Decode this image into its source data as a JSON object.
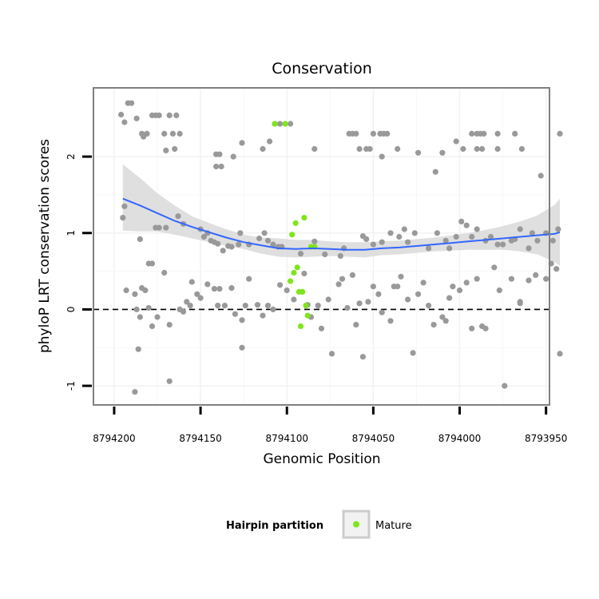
{
  "chart_data": {
    "type": "scatter",
    "title": "Conservation",
    "xlabel": "Genomic Position",
    "ylabel": "phyloP LRT conservation scores",
    "xlim": [
      8794212,
      8793948
    ],
    "ylim": [
      -1.25,
      2.9
    ],
    "x_reversed": true,
    "x_ticks": [
      8794200,
      8794150,
      8794100,
      8794050,
      8794000,
      8793950
    ],
    "x_tick_labels": [
      "8794200",
      "8794150",
      "8794100",
      "8794050",
      "8794000",
      "8793950"
    ],
    "y_ticks": [
      -1,
      0,
      1,
      2
    ],
    "y_tick_labels": [
      "-1",
      "0",
      "1",
      "2"
    ],
    "grid": true,
    "reference_line": {
      "y": 0,
      "style": "dashed"
    },
    "legend": {
      "title": "Hairpin partition",
      "placement": "bottom",
      "entries": [
        {
          "label": "Mature",
          "color": "#7fe51c"
        }
      ]
    },
    "colors": {
      "other": "#999999",
      "mature": "#7fe51c",
      "smooth": "#3366ff",
      "band": "#d9d9d9",
      "panel_border": "#808080"
    },
    "series": [
      {
        "group": "other",
        "points": [
          [
            8794196,
            2.55
          ],
          [
            8794194,
            2.45
          ],
          [
            8794192,
            2.7
          ],
          [
            8794190,
            2.7
          ],
          [
            8794187,
            2.5
          ],
          [
            8794184,
            2.3
          ],
          [
            8794183,
            2.26
          ],
          [
            8794181,
            2.3
          ],
          [
            8794178,
            2.54
          ],
          [
            8794176,
            2.54
          ],
          [
            8794174,
            2.54
          ],
          [
            8794171,
            2.3
          ],
          [
            8794168,
            2.54
          ],
          [
            8794166,
            2.3
          ],
          [
            8794164,
            2.54
          ],
          [
            8794162,
            2.3
          ],
          [
            8794170,
            2.08
          ],
          [
            8794165,
            2.1
          ],
          [
            8794141,
            2.03
          ],
          [
            8794139,
            2.03
          ],
          [
            8794141,
            1.87
          ],
          [
            8794138,
            1.87
          ],
          [
            8794131,
            2.0
          ],
          [
            8794126,
            2.18
          ],
          [
            8794114,
            2.1
          ],
          [
            8794110,
            2.2
          ],
          [
            8794107,
            2.43
          ],
          [
            8794104,
            2.43
          ],
          [
            8794098,
            2.43
          ],
          [
            8794084,
            2.1
          ],
          [
            8794064,
            2.3
          ],
          [
            8794062,
            2.3
          ],
          [
            8794060,
            2.3
          ],
          [
            8794058,
            2.1
          ],
          [
            8794054,
            2.1
          ],
          [
            8794052,
            2.1
          ],
          [
            8794050,
            2.3
          ],
          [
            8794046,
            2.3
          ],
          [
            8794044,
            2.3
          ],
          [
            8794042,
            2.3
          ],
          [
            8794045,
            2.0
          ],
          [
            8794036,
            2.1
          ],
          [
            8794024,
            2.05
          ],
          [
            8794014,
            1.8
          ],
          [
            8794010,
            2.05
          ],
          [
            8794002,
            2.2
          ],
          [
            8793998,
            2.1
          ],
          [
            8793993,
            2.3
          ],
          [
            8793990,
            2.3
          ],
          [
            8793988,
            2.3
          ],
          [
            8793986,
            2.3
          ],
          [
            8793990,
            2.1
          ],
          [
            8793987,
            2.1
          ],
          [
            8793978,
            2.1
          ],
          [
            8793968,
            2.3
          ],
          [
            8793964,
            2.1
          ],
          [
            8793978,
            2.3
          ],
          [
            8793953,
            1.75
          ],
          [
            8793942,
            2.3
          ],
          [
            8794194,
            1.35
          ],
          [
            8794195,
            1.2
          ],
          [
            8794176,
            1.07
          ],
          [
            8794174,
            1.07
          ],
          [
            8794170,
            1.07
          ],
          [
            8794163,
            1.22
          ],
          [
            8794160,
            1.12
          ],
          [
            8794150,
            1.05
          ],
          [
            8794148,
            0.95
          ],
          [
            8794146,
            1.0
          ],
          [
            8794144,
            0.9
          ],
          [
            8794142,
            0.88
          ],
          [
            8794140,
            0.86
          ],
          [
            8794137,
            0.77
          ],
          [
            8794134,
            0.83
          ],
          [
            8794132,
            0.82
          ],
          [
            8794127,
            1.0
          ],
          [
            8794116,
            0.93
          ],
          [
            8794113,
            1.0
          ],
          [
            8794111,
            0.9
          ],
          [
            8794108,
            0.85
          ],
          [
            8794105,
            0.82
          ],
          [
            8794103,
            0.82
          ],
          [
            8794092,
            0.73
          ],
          [
            8794084,
            0.89
          ],
          [
            8794078,
            0.72
          ],
          [
            8794056,
            0.96
          ],
          [
            8794054,
            0.92
          ],
          [
            8794050,
            0.85
          ],
          [
            8794045,
            0.88
          ],
          [
            8794040,
            1.0
          ],
          [
            8794035,
            0.95
          ],
          [
            8794032,
            1.05
          ],
          [
            8794030,
            0.88
          ],
          [
            8794026,
            1.0
          ],
          [
            8794018,
            0.8
          ],
          [
            8794013,
            1.0
          ],
          [
            8794008,
            0.9
          ],
          [
            8794006,
            0.8
          ],
          [
            8794002,
            0.95
          ],
          [
            8793999,
            1.15
          ],
          [
            8793996,
            1.1
          ],
          [
            8793993,
            0.95
          ],
          [
            8793990,
            1.05
          ],
          [
            8793985,
            0.9
          ],
          [
            8793982,
            0.95
          ],
          [
            8793978,
            0.85
          ],
          [
            8793975,
            0.85
          ],
          [
            8793970,
            0.9
          ],
          [
            8793968,
            0.92
          ],
          [
            8793965,
            1.05
          ],
          [
            8793960,
            0.8
          ],
          [
            8793958,
            1.0
          ],
          [
            8793955,
            0.9
          ],
          [
            8793950,
            1.0
          ],
          [
            8793946,
            0.9
          ],
          [
            8793943,
            1.05
          ],
          [
            8794128,
            0.85
          ],
          [
            8794122,
            0.85
          ],
          [
            8794069,
            0.7
          ],
          [
            8794067,
            0.8
          ],
          [
            8794185,
            0.92
          ],
          [
            8794180,
            0.6
          ],
          [
            8794178,
            0.6
          ],
          [
            8794171,
            0.48
          ],
          [
            8794193,
            0.25
          ],
          [
            8794188,
            0.2
          ],
          [
            8794187,
            0.0
          ],
          [
            8794185,
            -0.1
          ],
          [
            8794182,
            0.25
          ],
          [
            8794184,
            0.28
          ],
          [
            8794180,
            0.02
          ],
          [
            8794178,
            -0.22
          ],
          [
            8794186,
            -0.52
          ],
          [
            8794188,
            -1.08
          ],
          [
            8794175,
            -0.1
          ],
          [
            8794168,
            -0.2
          ],
          [
            8794160,
            -0.03
          ],
          [
            8794158,
            0.1
          ],
          [
            8794156,
            0.05
          ],
          [
            8794152,
            0.2
          ],
          [
            8794150,
            0.15
          ],
          [
            8794146,
            0.33
          ],
          [
            8794142,
            0.27
          ],
          [
            8794136,
            0.05
          ],
          [
            8794132,
            0.28
          ],
          [
            8794130,
            -0.06
          ],
          [
            8794126,
            -0.14
          ],
          [
            8794124,
            0.05
          ],
          [
            8794122,
            0.4
          ],
          [
            8794117,
            0.06
          ],
          [
            8794114,
            -0.08
          ],
          [
            8794111,
            0.05
          ],
          [
            8794108,
            0.0
          ],
          [
            8794104,
            0.32
          ],
          [
            8794100,
            0.25
          ],
          [
            8794096,
            0.13
          ],
          [
            8794090,
            0.47
          ],
          [
            8794088,
            0.06
          ],
          [
            8794086,
            -0.1
          ],
          [
            8794082,
            0.05
          ],
          [
            8794080,
            -0.25
          ],
          [
            8794076,
            0.13
          ],
          [
            8794074,
            -0.58
          ],
          [
            8794070,
            0.33
          ],
          [
            8794068,
            0.4
          ],
          [
            8794065,
            0.02
          ],
          [
            8794062,
            0.45
          ],
          [
            8794060,
            -0.2
          ],
          [
            8794058,
            0.08
          ],
          [
            8794056,
            -0.62
          ],
          [
            8794053,
            0.1
          ],
          [
            8794050,
            0.3
          ],
          [
            8794047,
            0.2
          ],
          [
            8794045,
            -0.04
          ],
          [
            8794040,
            -0.15
          ],
          [
            8794038,
            0.3
          ],
          [
            8794034,
            0.43
          ],
          [
            8794030,
            0.13
          ],
          [
            8794027,
            -0.57
          ],
          [
            8794024,
            0.2
          ],
          [
            8794021,
            0.35
          ],
          [
            8794018,
            0.05
          ],
          [
            8794015,
            -0.2
          ],
          [
            8794010,
            -0.1
          ],
          [
            8794008,
            -0.15
          ],
          [
            8794006,
            0.15
          ],
          [
            8794004,
            0.3
          ],
          [
            8794000,
            0.25
          ],
          [
            8793996,
            0.35
          ],
          [
            8793993,
            -0.25
          ],
          [
            8793990,
            0.4
          ],
          [
            8793987,
            -0.22
          ],
          [
            8793985,
            -0.25
          ],
          [
            8793980,
            0.55
          ],
          [
            8793977,
            0.25
          ],
          [
            8793974,
            -1.0
          ],
          [
            8793970,
            0.4
          ],
          [
            8793965,
            0.1
          ],
          [
            8793960,
            0.38
          ],
          [
            8793956,
            0.45
          ],
          [
            8793950,
            0.4
          ],
          [
            8793947,
            0.6
          ],
          [
            8793944,
            0.53
          ],
          [
            8793942,
            -0.58
          ],
          [
            8794162,
            0.0
          ],
          [
            8794155,
            0.36
          ],
          [
            8794168,
            -0.94
          ],
          [
            8794139,
            0.27
          ],
          [
            8794126,
            -0.5
          ],
          [
            8794036,
            0.3
          ],
          [
            8794140,
            0.05
          ],
          [
            8793965,
            0.08
          ]
        ]
      },
      {
        "group": "mature",
        "name": "Mature",
        "points": [
          [
            8794107,
            2.43
          ],
          [
            8794101,
            2.43
          ],
          [
            8794095,
            1.13
          ],
          [
            8794097,
            0.98
          ],
          [
            8794090,
            1.2
          ],
          [
            8794096,
            0.48
          ],
          [
            8794094,
            0.55
          ],
          [
            8794098,
            0.37
          ],
          [
            8794091,
            0.23
          ],
          [
            8794093,
            0.23
          ],
          [
            8794089,
            0.05
          ],
          [
            8794088,
            -0.08
          ],
          [
            8794092,
            -0.22
          ],
          [
            8794086,
            0.82
          ],
          [
            8794084,
            0.82
          ]
        ]
      }
    ],
    "smooth": {
      "x": [
        8794195,
        8794185,
        8794175,
        8794165,
        8794155,
        8794145,
        8794135,
        8794125,
        8794115,
        8794105,
        8794095,
        8794085,
        8794075,
        8794065,
        8794055,
        8794045,
        8794035,
        8794025,
        8794015,
        8794005,
        8793995,
        8793985,
        8793975,
        8793965,
        8793955,
        8793945,
        8793942
      ],
      "y": [
        1.45,
        1.36,
        1.26,
        1.16,
        1.08,
        1.01,
        0.94,
        0.88,
        0.84,
        0.8,
        0.79,
        0.8,
        0.79,
        0.78,
        0.78,
        0.8,
        0.81,
        0.83,
        0.85,
        0.87,
        0.89,
        0.91,
        0.93,
        0.95,
        0.97,
        0.99,
        1.01
      ],
      "lower": [
        1.03,
        1.02,
        1.02,
        0.98,
        0.93,
        0.88,
        0.83,
        0.79,
        0.73,
        0.69,
        0.68,
        0.69,
        0.7,
        0.69,
        0.68,
        0.71,
        0.72,
        0.74,
        0.76,
        0.77,
        0.78,
        0.78,
        0.78,
        0.76,
        0.72,
        0.62,
        0.57
      ],
      "upper": [
        1.9,
        1.72,
        1.52,
        1.36,
        1.22,
        1.13,
        1.05,
        0.98,
        0.94,
        0.93,
        0.91,
        0.91,
        0.89,
        0.88,
        0.88,
        0.89,
        0.9,
        0.92,
        0.94,
        0.97,
        1.0,
        1.04,
        1.09,
        1.15,
        1.23,
        1.37,
        1.45
      ]
    }
  }
}
